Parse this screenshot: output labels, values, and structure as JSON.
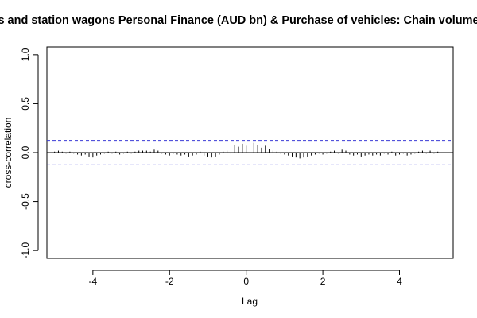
{
  "chart_data": {
    "type": "bar",
    "title": "s and station wagons Personal Finance (AUD bn) & Purchase of vehicles: Chain volume",
    "xlabel": "Lag",
    "ylabel": "cross-correlation",
    "xlim": [
      -5.2,
      5.4
    ],
    "ylim": [
      -1.08,
      1.08
    ],
    "x_ticks": [
      -4,
      -2,
      0,
      2,
      4
    ],
    "x_tick_labels": [
      "-4",
      "-2",
      "0",
      "2",
      "4"
    ],
    "y_ticks": [
      -1.0,
      -0.5,
      0.0,
      0.5,
      1.0
    ],
    "y_tick_labels": [
      "-1.0",
      "-0.5",
      "0.0",
      "0.5",
      "1.0"
    ],
    "confidence_bound": 0.125,
    "colors": {
      "bars": "#000000",
      "bounds": "#3b3bd6",
      "zero_line": "#000000"
    },
    "lags": [
      -5.0,
      -4.9,
      -4.8,
      -4.7,
      -4.6,
      -4.5,
      -4.4,
      -4.3,
      -4.2,
      -4.1,
      -4.0,
      -3.9,
      -3.8,
      -3.7,
      -3.6,
      -3.5,
      -3.4,
      -3.3,
      -3.2,
      -3.1,
      -3.0,
      -2.9,
      -2.8,
      -2.7,
      -2.6,
      -2.5,
      -2.4,
      -2.3,
      -2.2,
      -2.1,
      -2.0,
      -1.9,
      -1.8,
      -1.7,
      -1.6,
      -1.5,
      -1.4,
      -1.3,
      -1.2,
      -1.1,
      -1.0,
      -0.9,
      -0.8,
      -0.7,
      -0.6,
      -0.5,
      -0.4,
      -0.3,
      -0.2,
      -0.1,
      0.0,
      0.1,
      0.2,
      0.3,
      0.4,
      0.5,
      0.6,
      0.7,
      0.8,
      0.9,
      1.0,
      1.1,
      1.2,
      1.3,
      1.4,
      1.5,
      1.6,
      1.7,
      1.8,
      1.9,
      2.0,
      2.1,
      2.2,
      2.3,
      2.4,
      2.5,
      2.6,
      2.7,
      2.8,
      2.9,
      3.0,
      3.1,
      3.2,
      3.3,
      3.4,
      3.5,
      3.6,
      3.7,
      3.8,
      3.9,
      4.0,
      4.1,
      4.2,
      4.3,
      4.4,
      4.5,
      4.6,
      4.7,
      4.8,
      4.9,
      5.0
    ],
    "values": [
      0.01,
      0.02,
      0.01,
      -0.01,
      0.01,
      -0.01,
      -0.02,
      -0.03,
      -0.02,
      -0.04,
      -0.05,
      -0.03,
      -0.02,
      -0.01,
      0.01,
      -0.01,
      0.01,
      -0.02,
      -0.01,
      0.01,
      -0.01,
      0.01,
      0.02,
      0.02,
      0.02,
      0.01,
      0.03,
      0.02,
      -0.01,
      -0.02,
      -0.03,
      -0.01,
      -0.02,
      -0.03,
      -0.02,
      -0.04,
      -0.03,
      -0.02,
      0.01,
      -0.03,
      -0.04,
      -0.05,
      -0.04,
      -0.02,
      0.01,
      0.02,
      -0.01,
      0.08,
      0.06,
      0.09,
      0.07,
      0.09,
      0.1,
      0.08,
      0.05,
      0.07,
      0.04,
      0.02,
      0.01,
      -0.01,
      -0.02,
      -0.03,
      -0.04,
      -0.05,
      -0.06,
      -0.05,
      -0.04,
      -0.03,
      -0.02,
      -0.01,
      -0.02,
      -0.01,
      0.01,
      0.02,
      -0.01,
      0.03,
      0.02,
      -0.02,
      -0.03,
      -0.02,
      -0.04,
      -0.03,
      -0.02,
      -0.03,
      -0.02,
      -0.03,
      -0.01,
      -0.02,
      0.01,
      -0.03,
      -0.02,
      -0.01,
      -0.03,
      -0.02,
      -0.01,
      0.01,
      0.02,
      -0.01,
      0.02,
      -0.01,
      0.01
    ]
  }
}
